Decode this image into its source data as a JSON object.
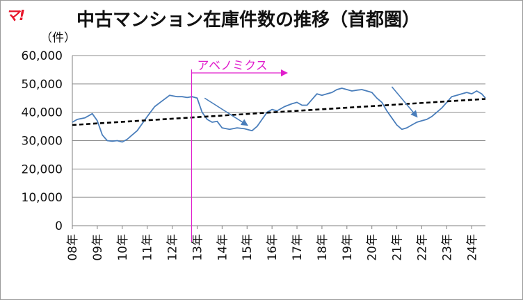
{
  "logo": "マ!",
  "chart_data": {
    "type": "line",
    "title": "中古マンション在庫件数の推移（首都圏）",
    "ylabel": "（件）",
    "ylim": [
      0,
      60000
    ],
    "y_ticks": [
      "0",
      "10,000",
      "20,000",
      "30,000",
      "40,000",
      "50,000",
      "60,000"
    ],
    "x_ticks": [
      "08年",
      "09年",
      "10年",
      "11年",
      "12年",
      "13年",
      "14年",
      "15年",
      "16年",
      "17年",
      "18年",
      "19年",
      "20年",
      "21年",
      "22年",
      "23年",
      "24年"
    ],
    "xlim": [
      2008.0,
      2024.55
    ],
    "grid": true,
    "series": [
      {
        "color": "#4a7ebb",
        "x": [
          2008.0,
          2008.2,
          2008.5,
          2008.8,
          2009.0,
          2009.2,
          2009.4,
          2009.6,
          2009.8,
          2010.0,
          2010.2,
          2010.4,
          2010.6,
          2010.8,
          2011.0,
          2011.3,
          2011.6,
          2011.9,
          2012.2,
          2012.4,
          2012.6,
          2012.8,
          2013.0,
          2013.2,
          2013.4,
          2013.6,
          2013.8,
          2014.0,
          2014.3,
          2014.6,
          2014.9,
          2015.2,
          2015.4,
          2015.6,
          2015.8,
          2016.0,
          2016.2,
          2016.5,
          2016.8,
          2017.0,
          2017.2,
          2017.4,
          2017.6,
          2017.8,
          2018.0,
          2018.2,
          2018.4,
          2018.6,
          2018.8,
          2019.0,
          2019.2,
          2019.4,
          2019.6,
          2019.8,
          2020.0,
          2020.2,
          2020.4,
          2020.6,
          2020.8,
          2021.0,
          2021.2,
          2021.4,
          2021.6,
          2021.8,
          2022.0,
          2022.2,
          2022.4,
          2022.6,
          2022.8,
          2023.0,
          2023.2,
          2023.4,
          2023.6,
          2023.8,
          2024.0,
          2024.2,
          2024.4,
          2024.55
        ],
        "values": [
          36500,
          37500,
          38000,
          39500,
          37000,
          32000,
          30000,
          29800,
          30000,
          29500,
          30500,
          32000,
          33500,
          36000,
          38500,
          42000,
          44000,
          46000,
          45500,
          45500,
          45200,
          45500,
          45000,
          40000,
          37500,
          36500,
          36800,
          34500,
          34000,
          34500,
          34200,
          33500,
          35000,
          37500,
          40000,
          41000,
          40500,
          42000,
          43000,
          43500,
          42500,
          42500,
          44500,
          46500,
          46000,
          46500,
          47000,
          48000,
          48500,
          48000,
          47500,
          47800,
          48000,
          47500,
          47000,
          45000,
          43500,
          40500,
          38000,
          35500,
          34000,
          34500,
          35500,
          36500,
          37000,
          37500,
          38500,
          40000,
          41500,
          43500,
          45500,
          46000,
          46500,
          47000,
          46500,
          47500,
          46500,
          45000
        ]
      },
      {
        "color": "#000000",
        "style": "dashed",
        "x": [
          2008.0,
          2024.55
        ],
        "values": [
          35500,
          44700
        ]
      }
    ],
    "annotations": [
      {
        "text": "アベノミクス",
        "x": 2013.0,
        "color": "#e01ecc"
      }
    ]
  }
}
